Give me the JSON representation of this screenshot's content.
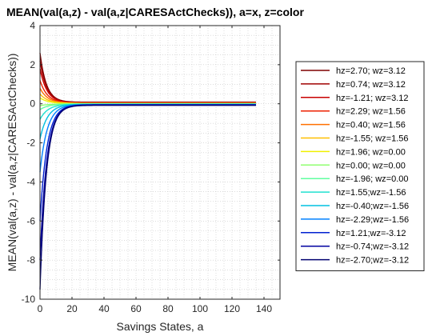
{
  "chart_data": {
    "type": "line",
    "title": "MEAN(val(a,z) - val(a,z|CARESActChecks)), a=x, z=color",
    "xlabel": "Savings States, a",
    "ylabel": "MEAN(val(a,z) - val(a,z|CARESActChecks))",
    "xlim": [
      0,
      150
    ],
    "ylim": [
      -10,
      4
    ],
    "xticks": [
      0,
      20,
      40,
      60,
      80,
      100,
      120,
      140
    ],
    "yticks": [
      -10,
      -8,
      -6,
      -4,
      -2,
      0,
      2,
      4
    ],
    "grid": "minor-dotted",
    "legend_position": "outside-right",
    "series": [
      {
        "name": "hz=2.70; wz=3.12",
        "color": "#7f0000",
        "start": 2.6,
        "end": 0.08
      },
      {
        "name": "hz=0.74; wz=3.12",
        "color": "#a00000",
        "start": 2.2,
        "end": 0.06
      },
      {
        "name": "hz=-1.21; wz=3.12",
        "color": "#c80000",
        "start": 1.8,
        "end": 0.05
      },
      {
        "name": "hz=2.29; wz=1.56",
        "color": "#ee2000",
        "start": 1.2,
        "end": 0.04
      },
      {
        "name": "hz=0.40; wz=1.56",
        "color": "#ff7000",
        "start": 0.8,
        "end": 0.03
      },
      {
        "name": "hz=-1.55; wz=1.56",
        "color": "#ffc000",
        "start": 0.5,
        "end": 0.02
      },
      {
        "name": "hz=1.96; wz=0.00",
        "color": "#f0f000",
        "start": 0.3,
        "end": 0.01
      },
      {
        "name": "hz=0.00; wz=0.00",
        "color": "#90ff70",
        "start": -0.1,
        "end": 0.0
      },
      {
        "name": "hz=-1.96; wz=0.00",
        "color": "#60ffa0",
        "start": -0.3,
        "end": -0.01
      },
      {
        "name": "hz=1.55;wz=-1.56",
        "color": "#20e0d0",
        "start": -0.8,
        "end": -0.02
      },
      {
        "name": "hz=-0.40;wz=-1.56",
        "color": "#00c0e0",
        "start": -1.8,
        "end": -0.03
      },
      {
        "name": "hz=-2.29;wz=-1.56",
        "color": "#0080ff",
        "start": -3.5,
        "end": -0.04
      },
      {
        "name": "hz=1.21;wz=-3.12",
        "color": "#0020d0",
        "start": -6.0,
        "end": -0.05
      },
      {
        "name": "hz=-0.74;wz=-3.12",
        "color": "#0000a0",
        "start": -8.0,
        "end": -0.06
      },
      {
        "name": "hz=-2.70;wz=-3.12",
        "color": "#000070",
        "start": -9.5,
        "end": -0.08
      }
    ]
  }
}
